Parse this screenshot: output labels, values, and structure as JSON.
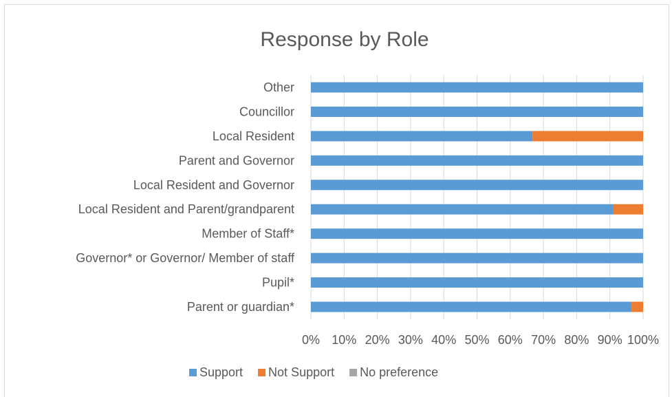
{
  "chart_data": {
    "type": "bar",
    "orientation": "horizontal",
    "stacked": "percent",
    "title": "Response by Role",
    "xlabel": "",
    "ylabel": "",
    "xlim": [
      0,
      100
    ],
    "x_ticks": [
      "0%",
      "10%",
      "20%",
      "30%",
      "40%",
      "50%",
      "60%",
      "70%",
      "80%",
      "90%",
      "100%"
    ],
    "grid": "vertical",
    "legend_position": "bottom",
    "categories": [
      "Parent or guardian*",
      "Pupil*",
      "Governor* or Governor/ Member of staff",
      "Member of Staff*",
      "Local Resident and Parent/grandparent",
      "Local Resident and Governor",
      "Parent and Governor",
      "Local Resident",
      "Councillor ",
      "Other"
    ],
    "series": [
      {
        "name": "Support",
        "color": "#5b9bd5",
        "values": [
          96.5,
          100,
          100,
          100,
          91,
          100,
          100,
          66.7,
          100,
          100
        ]
      },
      {
        "name": "Not Support",
        "color": "#ed7d31",
        "values": [
          3.5,
          0,
          0,
          0,
          9,
          0,
          0,
          33.3,
          0,
          0
        ]
      },
      {
        "name": "No preference",
        "color": "#a5a5a5",
        "values": [
          0,
          0,
          0,
          0,
          0,
          0,
          0,
          0,
          0,
          0
        ]
      }
    ]
  }
}
